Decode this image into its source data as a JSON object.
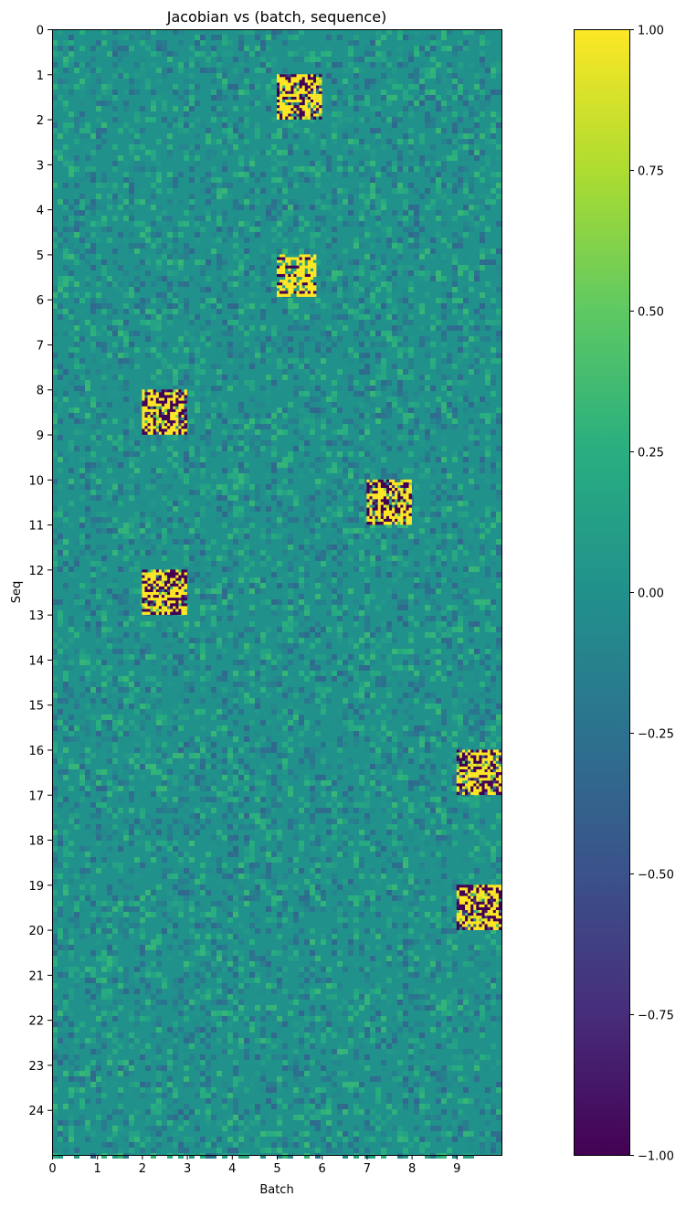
{
  "chart_data": {
    "type": "heatmap",
    "title": "Jacobian vs (batch, sequence)",
    "xlabel": "Batch",
    "ylabel": "Seq",
    "xlim": [
      0,
      10
    ],
    "ylim": [
      25,
      0
    ],
    "x_ticks": [
      0,
      1,
      2,
      3,
      4,
      5,
      6,
      7,
      8,
      9
    ],
    "y_ticks": [
      0,
      1,
      2,
      3,
      4,
      5,
      6,
      7,
      8,
      9,
      10,
      11,
      12,
      13,
      14,
      15,
      16,
      17,
      18,
      19,
      20,
      21,
      22,
      23,
      24
    ],
    "colormap": "viridis",
    "value_range": [
      -1.0,
      1.0
    ],
    "colorbar_ticks": [
      1.0,
      0.75,
      0.5,
      0.25,
      0.0,
      -0.25,
      -0.5,
      -0.75,
      -1.0
    ],
    "colorbar_tick_labels": [
      "1.00",
      "0.75",
      "0.50",
      "0.25",
      "0.00",
      "−0.25",
      "−0.50",
      "−0.75",
      "−1.00"
    ],
    "background_value": 0.0,
    "background_noise_amplitude": 0.15,
    "high_magnitude_blocks": [
      {
        "batch": 5,
        "seq": 1,
        "value_range": [
          -1.0,
          1.0
        ],
        "pattern": "dense"
      },
      {
        "batch": 5,
        "seq": 5,
        "value_range": [
          -1.0,
          1.0
        ],
        "pattern": "striped"
      },
      {
        "batch": 2,
        "seq": 8,
        "value_range": [
          -1.0,
          1.0
        ],
        "pattern": "dense"
      },
      {
        "batch": 7,
        "seq": 10,
        "value_range": [
          -1.0,
          1.0
        ],
        "pattern": "dense"
      },
      {
        "batch": 2,
        "seq": 12,
        "value_range": [
          -1.0,
          1.0
        ],
        "pattern": "dense"
      },
      {
        "batch": 9,
        "seq": 16,
        "value_range": [
          -1.0,
          1.0
        ],
        "pattern": "dense"
      },
      {
        "batch": 9,
        "seq": 19,
        "value_range": [
          -1.0,
          1.0
        ],
        "pattern": "dense"
      }
    ]
  }
}
